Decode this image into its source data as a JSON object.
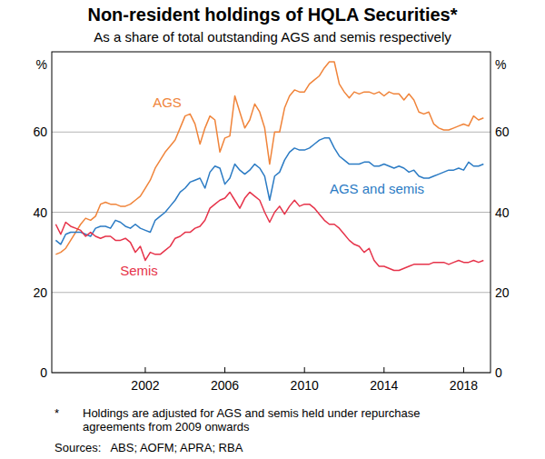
{
  "chart_data": {
    "type": "line",
    "title": "Non-resident holdings of HQLA Securities*",
    "subtitle": "As a share of total outstanding AGS and semis respectively",
    "y_label": "%",
    "footnote_marker": "*",
    "footnote": [
      "Holdings are adjusted for AGS and semis held under repurchase",
      "agreements from 2009 onwards"
    ],
    "source": "Sources:   ABS; AOFM; APRA; RBA",
    "grid": true,
    "xlim": [
      1997.3,
      2019.35
    ],
    "xticks": [
      2002,
      2006,
      2010,
      2014,
      2018
    ],
    "ylim": [
      0,
      80
    ],
    "yticks": [
      0,
      20,
      40,
      60
    ],
    "x": [
      1997.5,
      1997.75,
      1998,
      1998.25,
      1998.5,
      1998.75,
      1999,
      1999.25,
      1999.5,
      1999.75,
      2000,
      2000.25,
      2000.5,
      2000.75,
      2001,
      2001.25,
      2001.5,
      2001.75,
      2002,
      2002.25,
      2002.5,
      2002.75,
      2003,
      2003.25,
      2003.5,
      2003.75,
      2004,
      2004.25,
      2004.5,
      2004.75,
      2005,
      2005.25,
      2005.5,
      2005.75,
      2006,
      2006.25,
      2006.5,
      2006.75,
      2007,
      2007.25,
      2007.5,
      2007.75,
      2008,
      2008.25,
      2008.5,
      2008.75,
      2009,
      2009.25,
      2009.5,
      2009.75,
      2010,
      2010.25,
      2010.5,
      2010.75,
      2011,
      2011.25,
      2011.5,
      2011.75,
      2012,
      2012.25,
      2012.5,
      2012.75,
      2013,
      2013.25,
      2013.5,
      2013.75,
      2014,
      2014.25,
      2014.5,
      2014.75,
      2015,
      2015.25,
      2015.5,
      2015.75,
      2016,
      2016.25,
      2016.5,
      2016.75,
      2017,
      2017.25,
      2017.5,
      2017.75,
      2018,
      2018.25,
      2018.5,
      2018.75,
      2019
    ],
    "series": [
      {
        "name": "AGS",
        "color": "#f0843a",
        "values": [
          29.5,
          30,
          31,
          33,
          35,
          37,
          38.5,
          38,
          39,
          42,
          42.5,
          42,
          42,
          41.5,
          41.5,
          42,
          43,
          44,
          46,
          48,
          51,
          53,
          55,
          56.5,
          58,
          61,
          64,
          64.5,
          62,
          57,
          61,
          64,
          63,
          55,
          58.5,
          59,
          69,
          65,
          61,
          63,
          67,
          65,
          61,
          52,
          60,
          60,
          66,
          69,
          70.5,
          70,
          70,
          72,
          73,
          74,
          76,
          77.5,
          77.5,
          72,
          70,
          68.5,
          70,
          69.5,
          70,
          70,
          69.5,
          70,
          69,
          70,
          69.5,
          69.5,
          68,
          69.5,
          68,
          65,
          64.5,
          65,
          62,
          61,
          60.5,
          60.5,
          61,
          61.5,
          62,
          61.5,
          64,
          63,
          63.5
        ]
      },
      {
        "name": "AGS and semis",
        "color": "#2b7bc4",
        "values": [
          33,
          32,
          34.5,
          35,
          35,
          35,
          34.5,
          34,
          36,
          36.5,
          36.5,
          36,
          38,
          37.5,
          36.5,
          36,
          37,
          36,
          35.5,
          35,
          38,
          39,
          40,
          41.5,
          43,
          45,
          46,
          47.5,
          48,
          48.5,
          46,
          50,
          51.5,
          51,
          47,
          48.5,
          52,
          50.5,
          49.5,
          50.5,
          52,
          51,
          49,
          43,
          49,
          50,
          53,
          55,
          56,
          55.5,
          55.5,
          56,
          57,
          58,
          58.5,
          58.5,
          56,
          54,
          53,
          52,
          52,
          52,
          52.5,
          52.5,
          51.5,
          51.5,
          52,
          51.5,
          51,
          51.5,
          51,
          50,
          50.5,
          49,
          48.5,
          48.5,
          49,
          49.5,
          50,
          50.5,
          50.5,
          51,
          50.5,
          52.5,
          51.5,
          51.5,
          52
        ]
      },
      {
        "name": "Semis",
        "color": "#e6334a",
        "values": [
          37,
          34.5,
          37.5,
          36.5,
          36,
          35.5,
          34,
          35,
          34,
          33.5,
          34,
          34,
          33,
          33,
          33.5,
          32.5,
          30,
          31.5,
          28,
          30,
          29.5,
          29.5,
          30.5,
          31.5,
          33.5,
          34,
          35,
          35,
          36,
          36.5,
          38,
          41,
          42,
          43,
          43.5,
          45,
          43,
          41,
          43.5,
          45,
          44,
          43,
          40,
          37.5,
          40,
          41.5,
          39.5,
          41.5,
          43,
          41.5,
          42,
          42,
          41,
          39.5,
          38,
          37,
          37,
          36,
          34.5,
          33,
          32,
          31.5,
          30,
          31,
          28,
          26.5,
          26.5,
          26,
          25.5,
          25.5,
          26,
          26.5,
          27,
          27,
          27,
          27,
          27.5,
          27.5,
          27.5,
          27,
          27.5,
          28,
          27.5,
          27.5,
          28,
          27.5,
          28
        ]
      }
    ]
  }
}
